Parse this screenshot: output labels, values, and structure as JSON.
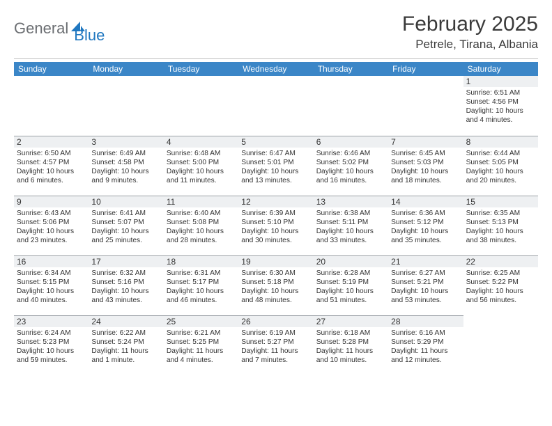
{
  "brand": {
    "part1": "General",
    "part2": "Blue"
  },
  "title": "February 2025",
  "location": "Petrele, Tirana, Albania",
  "colors": {
    "header_bg": "#3b86c7",
    "logo_gray": "#6b6e72",
    "logo_blue": "#1f77c0",
    "daynum_bg": "#eef0f2",
    "row_border": "#9aa0a6"
  },
  "weekdays": [
    "Sunday",
    "Monday",
    "Tuesday",
    "Wednesday",
    "Thursday",
    "Friday",
    "Saturday"
  ],
  "weeks": [
    [
      {
        "day": "",
        "sunrise": "",
        "sunset": "",
        "daylight": ""
      },
      {
        "day": "",
        "sunrise": "",
        "sunset": "",
        "daylight": ""
      },
      {
        "day": "",
        "sunrise": "",
        "sunset": "",
        "daylight": ""
      },
      {
        "day": "",
        "sunrise": "",
        "sunset": "",
        "daylight": ""
      },
      {
        "day": "",
        "sunrise": "",
        "sunset": "",
        "daylight": ""
      },
      {
        "day": "",
        "sunrise": "",
        "sunset": "",
        "daylight": ""
      },
      {
        "day": "1",
        "sunrise": "Sunrise: 6:51 AM",
        "sunset": "Sunset: 4:56 PM",
        "daylight": "Daylight: 10 hours and 4 minutes."
      }
    ],
    [
      {
        "day": "2",
        "sunrise": "Sunrise: 6:50 AM",
        "sunset": "Sunset: 4:57 PM",
        "daylight": "Daylight: 10 hours and 6 minutes."
      },
      {
        "day": "3",
        "sunrise": "Sunrise: 6:49 AM",
        "sunset": "Sunset: 4:58 PM",
        "daylight": "Daylight: 10 hours and 9 minutes."
      },
      {
        "day": "4",
        "sunrise": "Sunrise: 6:48 AM",
        "sunset": "Sunset: 5:00 PM",
        "daylight": "Daylight: 10 hours and 11 minutes."
      },
      {
        "day": "5",
        "sunrise": "Sunrise: 6:47 AM",
        "sunset": "Sunset: 5:01 PM",
        "daylight": "Daylight: 10 hours and 13 minutes."
      },
      {
        "day": "6",
        "sunrise": "Sunrise: 6:46 AM",
        "sunset": "Sunset: 5:02 PM",
        "daylight": "Daylight: 10 hours and 16 minutes."
      },
      {
        "day": "7",
        "sunrise": "Sunrise: 6:45 AM",
        "sunset": "Sunset: 5:03 PM",
        "daylight": "Daylight: 10 hours and 18 minutes."
      },
      {
        "day": "8",
        "sunrise": "Sunrise: 6:44 AM",
        "sunset": "Sunset: 5:05 PM",
        "daylight": "Daylight: 10 hours and 20 minutes."
      }
    ],
    [
      {
        "day": "9",
        "sunrise": "Sunrise: 6:43 AM",
        "sunset": "Sunset: 5:06 PM",
        "daylight": "Daylight: 10 hours and 23 minutes."
      },
      {
        "day": "10",
        "sunrise": "Sunrise: 6:41 AM",
        "sunset": "Sunset: 5:07 PM",
        "daylight": "Daylight: 10 hours and 25 minutes."
      },
      {
        "day": "11",
        "sunrise": "Sunrise: 6:40 AM",
        "sunset": "Sunset: 5:08 PM",
        "daylight": "Daylight: 10 hours and 28 minutes."
      },
      {
        "day": "12",
        "sunrise": "Sunrise: 6:39 AM",
        "sunset": "Sunset: 5:10 PM",
        "daylight": "Daylight: 10 hours and 30 minutes."
      },
      {
        "day": "13",
        "sunrise": "Sunrise: 6:38 AM",
        "sunset": "Sunset: 5:11 PM",
        "daylight": "Daylight: 10 hours and 33 minutes."
      },
      {
        "day": "14",
        "sunrise": "Sunrise: 6:36 AM",
        "sunset": "Sunset: 5:12 PM",
        "daylight": "Daylight: 10 hours and 35 minutes."
      },
      {
        "day": "15",
        "sunrise": "Sunrise: 6:35 AM",
        "sunset": "Sunset: 5:13 PM",
        "daylight": "Daylight: 10 hours and 38 minutes."
      }
    ],
    [
      {
        "day": "16",
        "sunrise": "Sunrise: 6:34 AM",
        "sunset": "Sunset: 5:15 PM",
        "daylight": "Daylight: 10 hours and 40 minutes."
      },
      {
        "day": "17",
        "sunrise": "Sunrise: 6:32 AM",
        "sunset": "Sunset: 5:16 PM",
        "daylight": "Daylight: 10 hours and 43 minutes."
      },
      {
        "day": "18",
        "sunrise": "Sunrise: 6:31 AM",
        "sunset": "Sunset: 5:17 PM",
        "daylight": "Daylight: 10 hours and 46 minutes."
      },
      {
        "day": "19",
        "sunrise": "Sunrise: 6:30 AM",
        "sunset": "Sunset: 5:18 PM",
        "daylight": "Daylight: 10 hours and 48 minutes."
      },
      {
        "day": "20",
        "sunrise": "Sunrise: 6:28 AM",
        "sunset": "Sunset: 5:19 PM",
        "daylight": "Daylight: 10 hours and 51 minutes."
      },
      {
        "day": "21",
        "sunrise": "Sunrise: 6:27 AM",
        "sunset": "Sunset: 5:21 PM",
        "daylight": "Daylight: 10 hours and 53 minutes."
      },
      {
        "day": "22",
        "sunrise": "Sunrise: 6:25 AM",
        "sunset": "Sunset: 5:22 PM",
        "daylight": "Daylight: 10 hours and 56 minutes."
      }
    ],
    [
      {
        "day": "23",
        "sunrise": "Sunrise: 6:24 AM",
        "sunset": "Sunset: 5:23 PM",
        "daylight": "Daylight: 10 hours and 59 minutes."
      },
      {
        "day": "24",
        "sunrise": "Sunrise: 6:22 AM",
        "sunset": "Sunset: 5:24 PM",
        "daylight": "Daylight: 11 hours and 1 minute."
      },
      {
        "day": "25",
        "sunrise": "Sunrise: 6:21 AM",
        "sunset": "Sunset: 5:25 PM",
        "daylight": "Daylight: 11 hours and 4 minutes."
      },
      {
        "day": "26",
        "sunrise": "Sunrise: 6:19 AM",
        "sunset": "Sunset: 5:27 PM",
        "daylight": "Daylight: 11 hours and 7 minutes."
      },
      {
        "day": "27",
        "sunrise": "Sunrise: 6:18 AM",
        "sunset": "Sunset: 5:28 PM",
        "daylight": "Daylight: 11 hours and 10 minutes."
      },
      {
        "day": "28",
        "sunrise": "Sunrise: 6:16 AM",
        "sunset": "Sunset: 5:29 PM",
        "daylight": "Daylight: 11 hours and 12 minutes."
      },
      {
        "day": "",
        "sunrise": "",
        "sunset": "",
        "daylight": ""
      }
    ]
  ]
}
